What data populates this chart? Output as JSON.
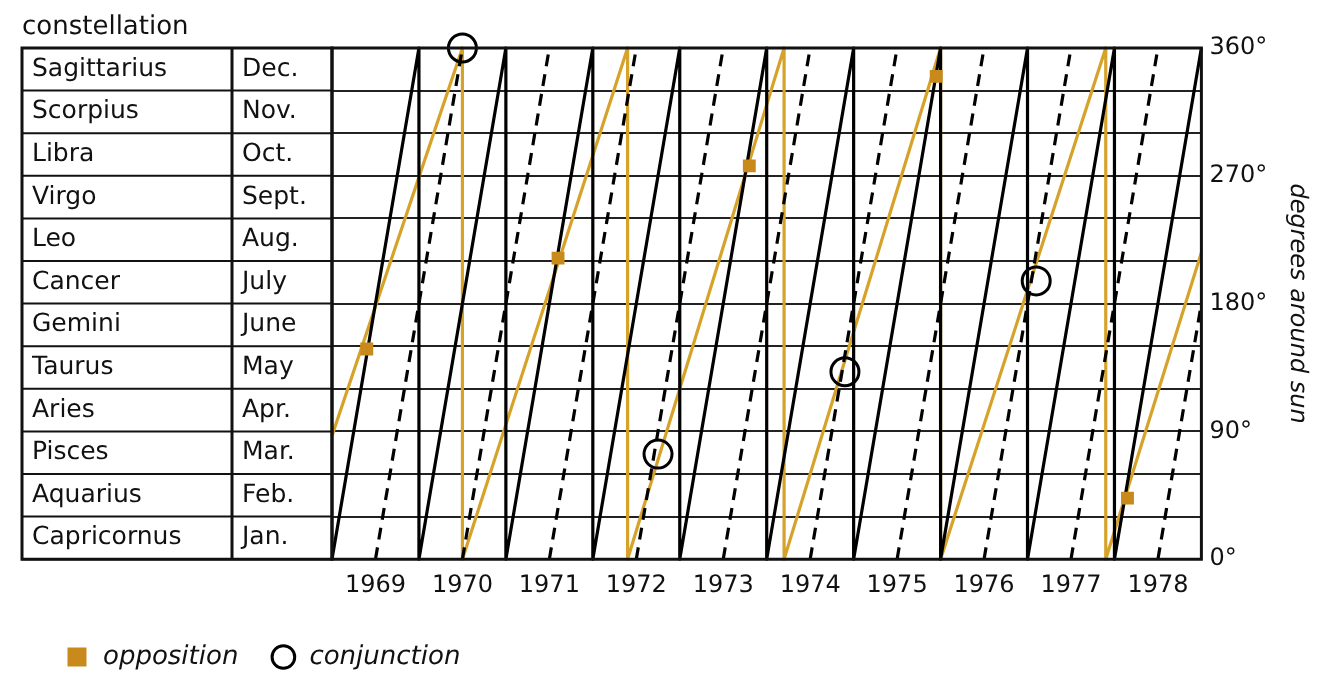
{
  "chart_data": {
    "type": "line",
    "ylabel": "degrees around sun",
    "xlim": [
      1969,
      1979
    ],
    "xticks": [
      {
        "value": 1969.5,
        "label": "1969"
      },
      {
        "value": 1970.5,
        "label": "1970"
      },
      {
        "value": 1971.5,
        "label": "1971"
      },
      {
        "value": 1972.5,
        "label": "1972"
      },
      {
        "value": 1973.5,
        "label": "1973"
      },
      {
        "value": 1974.5,
        "label": "1974"
      },
      {
        "value": 1975.5,
        "label": "1975"
      },
      {
        "value": 1976.5,
        "label": "1976"
      },
      {
        "value": 1977.5,
        "label": "1977"
      },
      {
        "value": 1978.5,
        "label": "1978"
      }
    ],
    "ylim": [
      0,
      360
    ],
    "yticks": [
      {
        "value": 0,
        "label": "0°"
      },
      {
        "value": 30,
        "label": null
      },
      {
        "value": 60,
        "label": null
      },
      {
        "value": 90,
        "label": "90°"
      },
      {
        "value": 120,
        "label": null
      },
      {
        "value": 150,
        "label": null
      },
      {
        "value": 180,
        "label": "180°"
      },
      {
        "value": 210,
        "label": null
      },
      {
        "value": 240,
        "label": null
      },
      {
        "value": 270,
        "label": "270°"
      },
      {
        "value": 300,
        "label": null
      },
      {
        "value": 330,
        "label": null
      },
      {
        "value": 360,
        "label": "360°"
      }
    ],
    "y2_categories": [
      "Sagittarius",
      "Scorpius",
      "Libra",
      "Virgo",
      "Leo",
      "Cancer",
      "Gemini",
      "Taurus",
      "Aries",
      "Pisces",
      "Aquarius",
      "Capricornus"
    ],
    "annotations": [
      "constellation",
      "Dec.",
      "Nov.",
      "Oct.",
      "Sept.",
      "Aug.",
      "July",
      "June",
      "May",
      "Apr.",
      "Mar.",
      "Feb.",
      "Jan."
    ],
    "grid": "y",
    "legend": "bottom",
    "series": [
      {
        "type": "line",
        "color": "#000000",
        "marker": "none",
        "line_style": "solid",
        "x": [
          1969,
          1970,
          1970,
          1971,
          1971,
          1972,
          1972,
          1973,
          1973,
          1974,
          1974,
          1975,
          1975,
          1976,
          1976,
          1977,
          1977,
          1978,
          1978,
          1979
        ],
        "values": [
          0,
          360,
          0,
          360,
          0,
          360,
          0,
          360,
          0,
          360,
          0,
          360,
          0,
          360,
          0,
          360,
          0,
          360,
          0,
          360
        ]
      },
      {
        "type": "line",
        "color": "#000000",
        "marker": "none",
        "line_style": "dashed",
        "x": [
          1969.5,
          1970.5,
          null,
          1970.5,
          1971.5,
          null,
          1971.5,
          1972.5,
          null,
          1972.5,
          1973.5,
          null,
          1973.5,
          1974.5,
          null,
          1974.5,
          1975.5,
          null,
          1975.5,
          1976.5,
          null,
          1976.5,
          1977.5,
          null,
          1977.5,
          1978.5,
          null,
          1978.5,
          1979
        ],
        "values": [
          0,
          360,
          null,
          0,
          360,
          null,
          0,
          360,
          null,
          0,
          360,
          null,
          0,
          360,
          null,
          0,
          360,
          null,
          0,
          360,
          null,
          0,
          360,
          null,
          0,
          360,
          null,
          0,
          180
        ]
      },
      {
        "type": "line",
        "color": "#d6a22a",
        "marker": "none",
        "line_style": "solid",
        "x": [
          1969,
          1970.5,
          1970.5,
          1972.4,
          1972.4,
          1974.2,
          1974.2,
          1976.0,
          1976.0,
          1977.9,
          1977.9,
          1979
        ],
        "values": [
          87,
          360,
          0,
          360,
          0,
          360,
          0,
          360,
          0,
          360,
          0,
          216
        ]
      },
      {
        "type": "scatter",
        "name": "opposition",
        "color": "#c98a1c",
        "marker": "square",
        "x": [
          1969.4,
          1971.6,
          1973.8,
          1975.95,
          1978.15
        ],
        "values": [
          148,
          212,
          277,
          340,
          43
        ]
      },
      {
        "type": "scatter",
        "name": "conjunction",
        "color": "#000000",
        "marker": "circle",
        "x": [
          1970.5,
          1972.75,
          1974.9,
          1977.1
        ],
        "values": [
          360,
          74,
          132,
          196
        ]
      }
    ]
  }
}
